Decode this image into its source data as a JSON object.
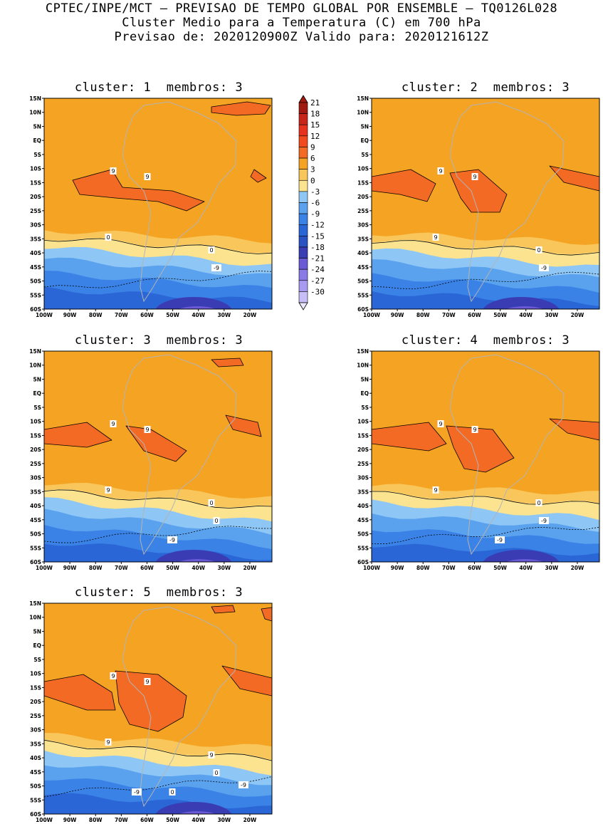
{
  "header": {
    "line1": "CPTEC/INPE/MCT — PREVISAO DE TEMPO GLOBAL POR ENSEMBLE — TQ0126L028",
    "line2": "Cluster Medio para a Temperatura (C) em 700 hPa",
    "line3": "Previsao de: 2020120900Z   Valido para: 2020121612Z"
  },
  "axes": {
    "lat_labels": [
      "15N",
      "10N",
      "5N",
      "EQ",
      "5S",
      "10S",
      "15S",
      "20S",
      "25S",
      "30S",
      "35S",
      "40S",
      "45S",
      "50S",
      "55S",
      "60S"
    ],
    "lon_labels": [
      "100W",
      "90W",
      "80W",
      "70W",
      "60W",
      "50W",
      "40W",
      "30W",
      "20W"
    ]
  },
  "colorbar": {
    "labels": [
      "21",
      "18",
      "15",
      "12",
      "9",
      "6",
      "3",
      "0",
      "-3",
      "-6",
      "-9",
      "-12",
      "-15",
      "-18",
      "-21",
      "-24",
      "-27",
      "-30"
    ],
    "colors": [
      "#a01a12",
      "#c8251a",
      "#e6321f",
      "#f04a1e",
      "#f26a24",
      "#f5a322",
      "#f8c65a",
      "#fbe38f",
      "#8ec6f5",
      "#5aa2ee",
      "#3a82e6",
      "#2a66d6",
      "#2a52c2",
      "#3a3cb4",
      "#6a5ad6",
      "#8a7ae6",
      "#a89af0",
      "#c8bef7"
    ]
  },
  "panels": [
    {
      "cluster_label": "cluster:",
      "cluster_number": "1",
      "members_label": "membros:",
      "members_number": "3",
      "contour_labels": [
        "9",
        "9",
        "0",
        "0",
        "-9"
      ]
    },
    {
      "cluster_label": "cluster:",
      "cluster_number": "2",
      "members_label": "membros:",
      "members_number": "3",
      "contour_labels": [
        "9",
        "9",
        "9",
        "0",
        "-9"
      ]
    },
    {
      "cluster_label": "cluster:",
      "cluster_number": "3",
      "members_label": "membros:",
      "members_number": "3",
      "contour_labels": [
        "9",
        "9",
        "9",
        "0",
        "0",
        "-9"
      ]
    },
    {
      "cluster_label": "cluster:",
      "cluster_number": "4",
      "members_label": "membros:",
      "members_number": "3",
      "contour_labels": [
        "9",
        "9",
        "9",
        "0",
        "-9",
        "-9"
      ]
    },
    {
      "cluster_label": "cluster:",
      "cluster_number": "5",
      "members_label": "membros:",
      "members_number": "3",
      "contour_labels": [
        "9",
        "9",
        "9",
        "9",
        "0",
        "0",
        "-9",
        "-9"
      ]
    }
  ]
}
